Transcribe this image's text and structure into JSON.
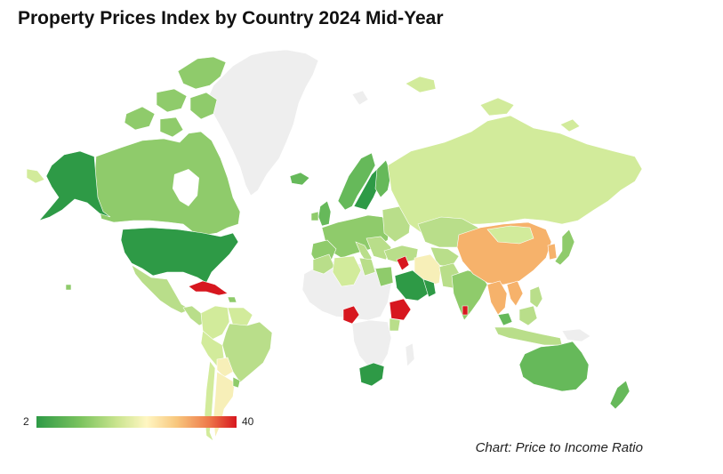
{
  "title": "Property Prices Index by Country 2024 Mid-Year",
  "caption": "Chart: Price to Income Ratio",
  "legend": {
    "min": "2",
    "max": "40",
    "colors": [
      "#2e9a46",
      "#7bc35e",
      "#c9e48e",
      "#fff6c2",
      "#f8c77d",
      "#ee7a4a",
      "#d7171f"
    ]
  },
  "colors": {
    "no_data": "#eeeeee",
    "border": "#ffffff"
  },
  "map_colors": {
    "dark_green": "#2e9a46",
    "green": "#66b95a",
    "light_green": "#8fcb6b",
    "pale_green": "#b9de8a",
    "yellow_green": "#d2eb9b",
    "pale_yellow": "#f7efb8",
    "orange": "#f6b26b",
    "red": "#d7171f"
  }
}
